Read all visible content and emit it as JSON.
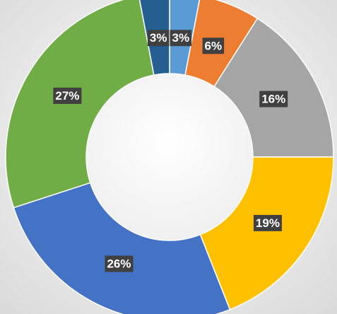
{
  "chart_data": {
    "type": "donut",
    "values": [
      3,
      6,
      16,
      19,
      26,
      27,
      3
    ],
    "value_labels": [
      "3%",
      "6%",
      "16%",
      "19%",
      "26%",
      "27%",
      "3%"
    ],
    "colors": [
      "#5b9bd5",
      "#ed7d31",
      "#a5a5a5",
      "#ffc000",
      "#4472c4",
      "#70ad47",
      "#255e91"
    ]
  }
}
